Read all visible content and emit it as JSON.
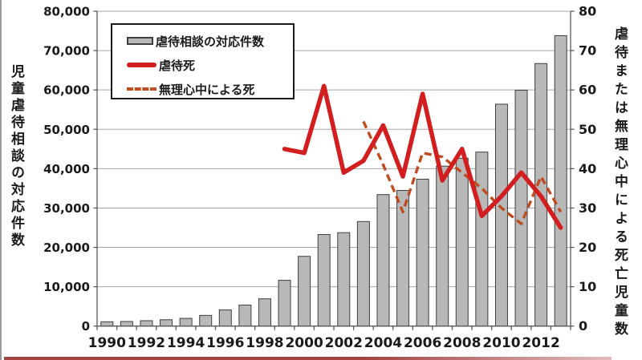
{
  "chart_data": {
    "type": "combo-bar-line",
    "title": "",
    "categories": [
      1990,
      1991,
      1992,
      1993,
      1994,
      1995,
      1996,
      1997,
      1998,
      1999,
      2000,
      2001,
      2002,
      2003,
      2004,
      2005,
      2006,
      2007,
      2008,
      2009,
      2010,
      2011,
      2012,
      2013
    ],
    "series": [
      {
        "name": "虐待相談の対応件数",
        "type": "bar",
        "axis": "left",
        "start_year": 1990,
        "values": [
          1101,
          1171,
          1372,
          1611,
          1961,
          2722,
          4102,
          5352,
          6932,
          11631,
          17725,
          23274,
          23738,
          26569,
          33408,
          34472,
          37323,
          40639,
          42664,
          44211,
          56384,
          59919,
          66701,
          73802
        ]
      },
      {
        "name": "虐待死",
        "type": "line",
        "axis": "right",
        "start_year": 1999,
        "values": [
          45,
          44,
          61,
          39,
          42,
          51,
          38,
          59,
          37,
          45,
          28,
          33,
          39,
          33,
          25
        ]
      },
      {
        "name": "無理心中による死",
        "type": "line-dashed",
        "axis": "right",
        "start_year": 2003,
        "values": [
          52,
          41,
          29,
          44,
          43,
          39,
          35,
          30,
          26,
          38,
          29
        ]
      }
    ],
    "axes": {
      "left_title": "児童虐待相談の対応件数",
      "right_title": "虐待または無理心中による死亡児童数",
      "left_range": [
        0,
        80000
      ],
      "right_range": [
        0,
        80
      ],
      "left_ticks": [
        "0",
        "10,000",
        "20,000",
        "30,000",
        "40,000",
        "50,000",
        "60,000",
        "70,000",
        "80,000"
      ],
      "right_ticks": [
        "0",
        "10",
        "20",
        "30",
        "40",
        "50",
        "60",
        "70",
        "80"
      ],
      "x_ticks": [
        "1990",
        "1992",
        "1994",
        "1996",
        "1998",
        "2000",
        "2002",
        "2004",
        "2006",
        "2008",
        "2010",
        "2012"
      ],
      "grid": true
    },
    "legend": {
      "position": "top-left-inside",
      "items": [
        "虐待相談の対応件数",
        "虐待死",
        "無理心中による死"
      ]
    }
  },
  "colors": {
    "bar_fill": "#b8b8b8",
    "bar_border": "#3f3f3f",
    "abuse_line": "#d21e1e",
    "suicide_line": "#bf4b1f",
    "grid": "#a6a6a6",
    "axis": "#595959",
    "text": "#1a1a1a",
    "edge_left": "#9a9a9a",
    "edge_bottom_start": "#a34444",
    "edge_bottom_end": "#e3bcbc"
  }
}
